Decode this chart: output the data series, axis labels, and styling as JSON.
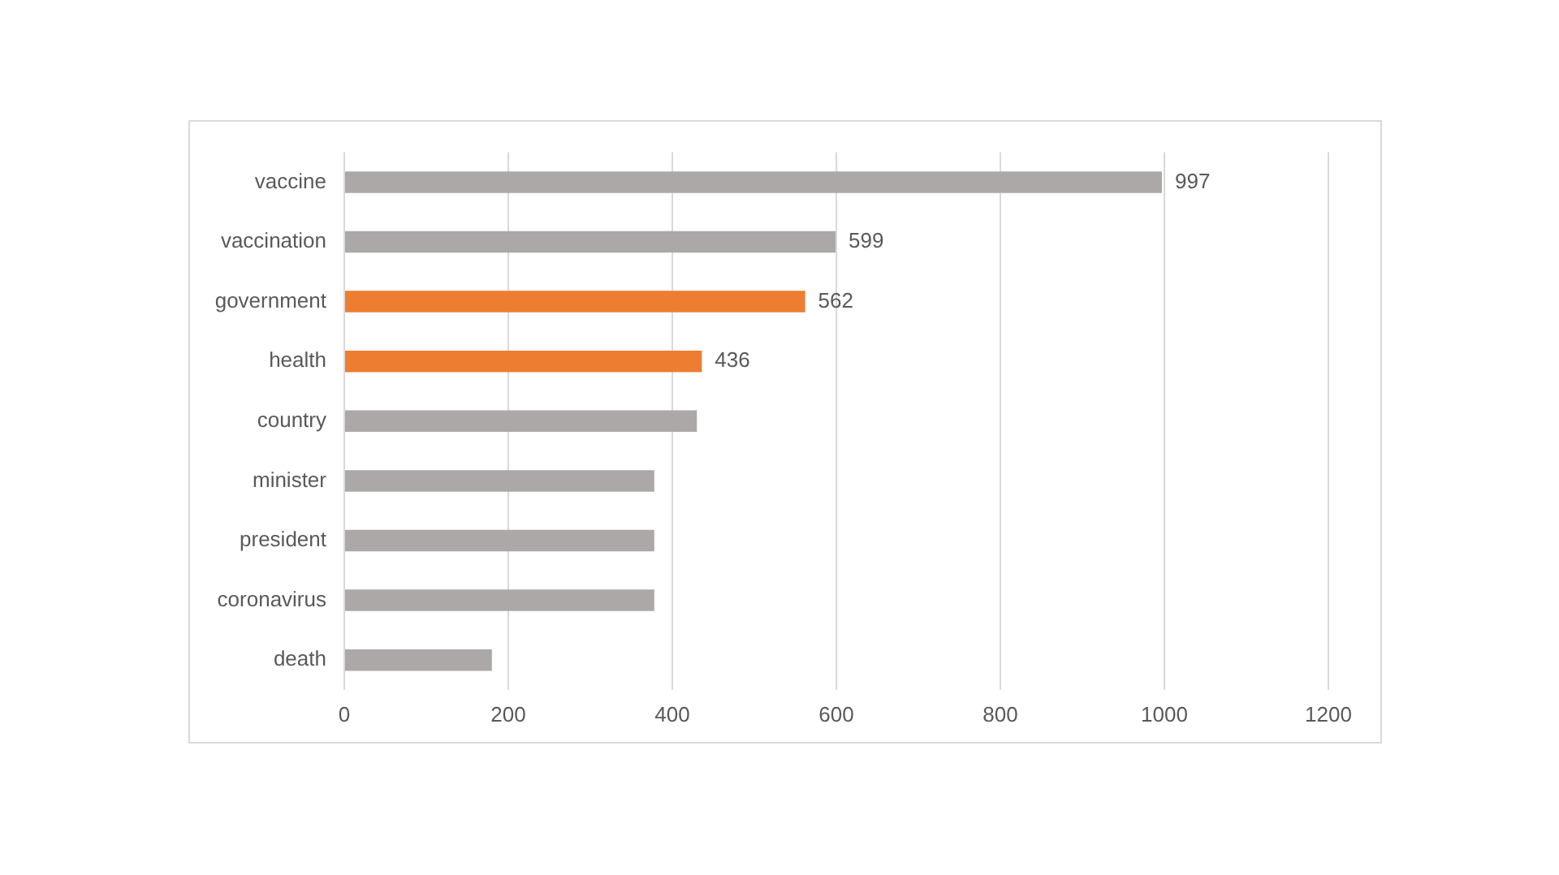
{
  "chart_data": {
    "type": "bar",
    "orientation": "horizontal",
    "categories": [
      "vaccine",
      "vaccination",
      "government",
      "health",
      "country",
      "minister",
      "president",
      "coronavirus",
      "death"
    ],
    "values": [
      997,
      599,
      562,
      436,
      430,
      378,
      378,
      378,
      180
    ],
    "colors": [
      "#aca8a8",
      "#aca8a8",
      "#ed7d31",
      "#ed7d31",
      "#aca8a8",
      "#aca8a8",
      "#aca8a8",
      "#aca8a8",
      "#aca8a8"
    ],
    "value_labels": [
      "997",
      "599",
      "562",
      "436",
      null,
      null,
      null,
      null,
      null
    ],
    "xlim": [
      0,
      1200
    ],
    "xticks": [
      0,
      200,
      400,
      600,
      800,
      1000,
      1200
    ],
    "grid": "x",
    "legend": false
  }
}
